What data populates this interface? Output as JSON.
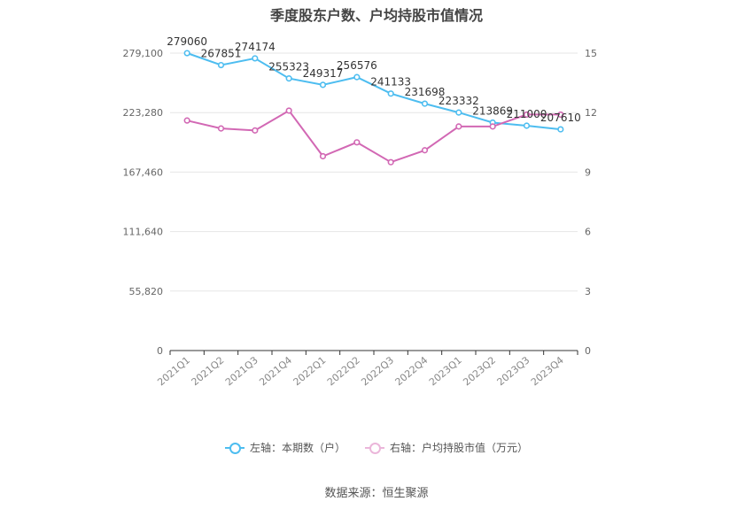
{
  "chart_data": {
    "type": "line",
    "title": "季度股东户数、户均持股市值情况",
    "categories": [
      "2021Q1",
      "2021Q2",
      "2021Q3",
      "2021Q4",
      "2022Q1",
      "2022Q2",
      "2022Q3",
      "2022Q4",
      "2023Q1",
      "2023Q2",
      "2023Q3",
      "2023Q4"
    ],
    "left_axis": {
      "ticks": [
        "0",
        "55,820",
        "111,640",
        "167,460",
        "223,280",
        "279,100"
      ],
      "ylim": [
        0,
        279100
      ]
    },
    "right_axis": {
      "ticks": [
        "0",
        "3",
        "6",
        "9",
        "12",
        "15"
      ],
      "ylim": [
        0,
        15
      ]
    },
    "grid": true,
    "series": [
      {
        "name": "左轴：本期数（户）",
        "axis": "left",
        "color": "#4dbdf0",
        "values": [
          279060,
          267851,
          274174,
          255323,
          249317,
          256576,
          241133,
          231698,
          223332,
          213869,
          211000,
          207610
        ],
        "labels": [
          "279060",
          "267851",
          "274174",
          "255323",
          "249317",
          "256576",
          "241133",
          "231698",
          "223332",
          "213869",
          "211000",
          "207610"
        ]
      },
      {
        "name": "右轴：户均持股市值（万元）",
        "axis": "right",
        "color": "#d268b4",
        "values": [
          11.6,
          11.2,
          11.1,
          12.1,
          9.8,
          10.5,
          9.5,
          10.1,
          11.3,
          11.3,
          11.9,
          11.9
        ]
      }
    ],
    "legend_position": "bottom",
    "source": "数据来源：恒生聚源"
  }
}
